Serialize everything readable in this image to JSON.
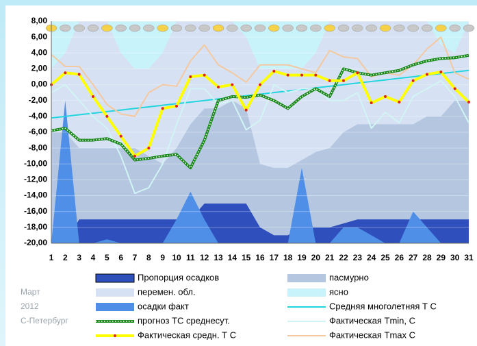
{
  "chart_data": {
    "type": "combo",
    "side_labels": [
      "Март",
      "2012",
      "С-Петербург"
    ],
    "categories": [
      "1",
      "2",
      "3",
      "4",
      "5",
      "6",
      "7",
      "8",
      "9",
      "10",
      "11",
      "12",
      "13",
      "14",
      "15",
      "16",
      "17",
      "18",
      "19",
      "20",
      "21",
      "22",
      "23",
      "24",
      "25",
      "26",
      "27",
      "28",
      "29",
      "30",
      "31"
    ],
    "ylim": [
      -20,
      8
    ],
    "yticks": [
      {
        "value": -20,
        "label": "-20,00"
      },
      {
        "value": -18,
        "label": "-18,00"
      },
      {
        "value": -16,
        "label": "-16,00"
      },
      {
        "value": -14,
        "label": "-14,00"
      },
      {
        "value": -12,
        "label": "-12,00"
      },
      {
        "value": -10,
        "label": "-10,00"
      },
      {
        "value": -8,
        "label": "-8,00"
      },
      {
        "value": -6,
        "label": "-6,00"
      },
      {
        "value": -4,
        "label": "-4,00"
      },
      {
        "value": -2,
        "label": "-2,00"
      },
      {
        "value": 0,
        "label": "0,00"
      },
      {
        "value": 2,
        "label": "2,00"
      },
      {
        "value": 4,
        "label": "4,00"
      },
      {
        "value": 6,
        "label": "6,00"
      },
      {
        "value": 8,
        "label": "8,00"
      }
    ],
    "series": [
      {
        "name": "Пропорция осадков",
        "color": "#2e4fbc",
        "kind": "area",
        "values": [
          -20,
          -20,
          -17,
          -17,
          -17,
          -17,
          -17,
          -17,
          -17,
          -17,
          -17,
          -15,
          -15,
          -15,
          -15,
          -18,
          -19,
          -19,
          -18,
          -18,
          -18,
          -17.5,
          -17,
          -17,
          -17,
          -17,
          -17,
          -17,
          -17,
          -17,
          -17
        ]
      },
      {
        "name": "пасмурно",
        "color": "#b4c6e0",
        "kind": "area",
        "values": [
          -6,
          -6,
          -8,
          -8,
          -8,
          -8,
          -8,
          -9,
          -10,
          -8,
          -5,
          -3,
          -3,
          -2,
          -3,
          -10,
          -10.5,
          -10.5,
          -9.5,
          -8.5,
          -8,
          -6,
          -5,
          -5,
          -5,
          -5,
          -5,
          -4,
          -4,
          -2,
          -2
        ]
      },
      {
        "name": "перемен. обл.",
        "color": "#d6e2f3",
        "kind": "area",
        "values": [
          2,
          4,
          8,
          8,
          8,
          4,
          2,
          2,
          4,
          8,
          8,
          8,
          8,
          8,
          6,
          2,
          2,
          2,
          2,
          4,
          8,
          8,
          8,
          8,
          8,
          8,
          8,
          8,
          5,
          4,
          8
        ]
      },
      {
        "name": "ясно",
        "color": "#c8f3fa",
        "kind": "background"
      },
      {
        "name": "осадки факт",
        "color": "#4f8fe8",
        "kind": "area",
        "values": [
          -20,
          -2,
          -20,
          -20,
          -19.5,
          -20,
          -20,
          -20,
          -20,
          -17,
          -13.5,
          -17,
          -20,
          -20,
          -20,
          -20,
          -20,
          -20,
          -10.5,
          -20,
          -20,
          -18,
          -18,
          -19,
          -20,
          -20,
          -16,
          -18,
          -20,
          -20,
          -20
        ]
      },
      {
        "name": "Средняя многолетняя Т С",
        "color": "#22d4e0",
        "kind": "line",
        "values": [
          -4.2,
          -4,
          -3.8,
          -3.6,
          -3.4,
          -3.2,
          -3,
          -2.8,
          -2.6,
          -2.4,
          -2.2,
          -2,
          -1.8,
          -1.6,
          -1.4,
          -1.2,
          -1,
          -0.8,
          -0.6,
          -0.4,
          -0.2,
          0,
          0.2,
          0.4,
          0.6,
          0.8,
          1,
          1.2,
          1.4,
          1.6,
          1.8
        ]
      },
      {
        "name": "прогноз ТС среднесут.",
        "color": "#1a8a1a",
        "kind": "dotted",
        "values": [
          -5.8,
          -5.5,
          -7,
          -7,
          -6.8,
          -7.5,
          -9.5,
          -9.3,
          -9,
          -8.8,
          -10.5,
          -7,
          -2,
          -1.5,
          -1.6,
          -1.3,
          -2,
          -3,
          -1.5,
          -0.5,
          -1.5,
          2,
          1.5,
          1.2,
          1.5,
          1.8,
          2.5,
          3,
          3.3,
          3.4,
          3.7
        ]
      },
      {
        "name": "Фактическая Tmin, С",
        "color": "#d2f4f4",
        "kind": "line",
        "values": [
          -1,
          0,
          -2,
          -4,
          -5.5,
          -9,
          -13.7,
          -13,
          -10,
          -5,
          -0.5,
          -0.5,
          -2.5,
          -2,
          -5.7,
          -4.5,
          0,
          -1,
          -0.5,
          -0.5,
          -2,
          -2,
          -1,
          -5.5,
          -3.5,
          -4.8,
          -1.5,
          -0.5,
          0.5,
          -1.5,
          -4.8
        ]
      },
      {
        "name": "Фактическая средн. Т С",
        "color": "#ffff00",
        "marker": "#e02020",
        "kind": "line",
        "values": [
          0,
          1.5,
          1.3,
          -1.5,
          -4,
          -6.5,
          -9,
          -8,
          -3,
          -2.7,
          1,
          1.2,
          -0.3,
          0,
          -3.2,
          0,
          1.7,
          1.2,
          1.2,
          1.2,
          0.5,
          0.5,
          1.5,
          -2.3,
          -1.5,
          -2.2,
          0.5,
          1.3,
          1.6,
          -0.5,
          -2.2
        ]
      },
      {
        "name": "Фактическая Tmax С",
        "color": "#f4c8a0",
        "kind": "line",
        "values": [
          3.8,
          2.3,
          2.3,
          0,
          -2.5,
          -3.7,
          -4,
          -1,
          0,
          -0.2,
          3,
          5,
          2.5,
          1.5,
          0.3,
          2.5,
          2.5,
          2.5,
          2,
          1.5,
          4.3,
          3.5,
          3.3,
          1,
          1.5,
          1.2,
          2.5,
          4.5,
          6,
          1.5,
          0.7
        ]
      }
    ]
  }
}
